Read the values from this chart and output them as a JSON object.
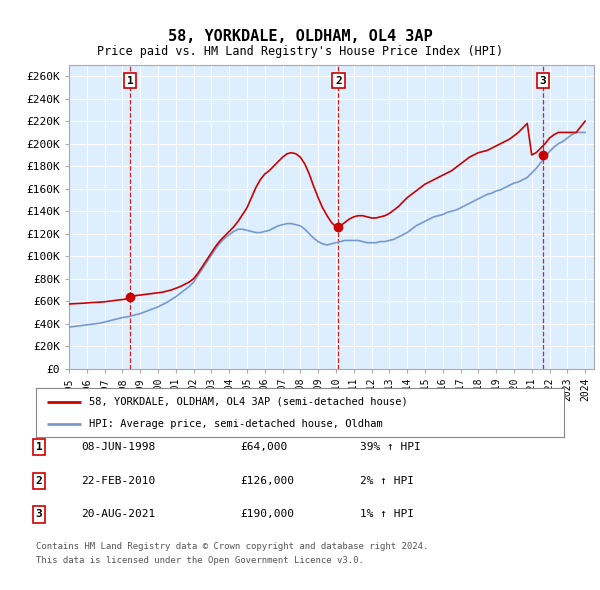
{
  "title": "58, YORKDALE, OLDHAM, OL4 3AP",
  "subtitle": "Price paid vs. HM Land Registry's House Price Index (HPI)",
  "ylabel_ticks": [
    "£0",
    "£20K",
    "£40K",
    "£60K",
    "£80K",
    "£100K",
    "£120K",
    "£140K",
    "£160K",
    "£180K",
    "£200K",
    "£220K",
    "£240K",
    "£260K"
  ],
  "ytick_values": [
    0,
    20000,
    40000,
    60000,
    80000,
    100000,
    120000,
    140000,
    160000,
    180000,
    200000,
    220000,
    240000,
    260000
  ],
  "ylim": [
    0,
    270000
  ],
  "xlim_start": 1995.0,
  "xlim_end": 2024.5,
  "sale_dates": [
    1998.44,
    2010.14,
    2021.64
  ],
  "sale_prices": [
    64000,
    126000,
    190000
  ],
  "sale_labels": [
    "1",
    "2",
    "3"
  ],
  "vline_color": "#cc0000",
  "sale_marker_color": "#cc0000",
  "hpi_line_color": "#7799cc",
  "price_line_color": "#cc0000",
  "background_color": "#ffffff",
  "plot_bg_color": "#ddeeff",
  "grid_color": "#ffffff",
  "legend_label_price": "58, YORKDALE, OLDHAM, OL4 3AP (semi-detached house)",
  "legend_label_hpi": "HPI: Average price, semi-detached house, Oldham",
  "table_entries": [
    {
      "label": "1",
      "date": "08-JUN-1998",
      "price": "£64,000",
      "hpi": "39% ↑ HPI"
    },
    {
      "label": "2",
      "date": "22-FEB-2010",
      "price": "£126,000",
      "hpi": "2% ↑ HPI"
    },
    {
      "label": "3",
      "date": "20-AUG-2021",
      "price": "£190,000",
      "hpi": "1% ↑ HPI"
    }
  ],
  "footnote1": "Contains HM Land Registry data © Crown copyright and database right 2024.",
  "footnote2": "This data is licensed under the Open Government Licence v3.0.",
  "hpi_data_x": [
    1995.0,
    1995.25,
    1995.5,
    1995.75,
    1996.0,
    1996.25,
    1996.5,
    1996.75,
    1997.0,
    1997.25,
    1997.5,
    1997.75,
    1998.0,
    1998.25,
    1998.5,
    1998.75,
    1999.0,
    1999.25,
    1999.5,
    1999.75,
    2000.0,
    2000.25,
    2000.5,
    2000.75,
    2001.0,
    2001.25,
    2001.5,
    2001.75,
    2002.0,
    2002.25,
    2002.5,
    2002.75,
    2003.0,
    2003.25,
    2003.5,
    2003.75,
    2004.0,
    2004.25,
    2004.5,
    2004.75,
    2005.0,
    2005.25,
    2005.5,
    2005.75,
    2006.0,
    2006.25,
    2006.5,
    2006.75,
    2007.0,
    2007.25,
    2007.5,
    2007.75,
    2008.0,
    2008.25,
    2008.5,
    2008.75,
    2009.0,
    2009.25,
    2009.5,
    2009.75,
    2010.0,
    2010.25,
    2010.5,
    2010.75,
    2011.0,
    2011.25,
    2011.5,
    2011.75,
    2012.0,
    2012.25,
    2012.5,
    2012.75,
    2013.0,
    2013.25,
    2013.5,
    2013.75,
    2014.0,
    2014.25,
    2014.5,
    2014.75,
    2015.0,
    2015.25,
    2015.5,
    2015.75,
    2016.0,
    2016.25,
    2016.5,
    2016.75,
    2017.0,
    2017.25,
    2017.5,
    2017.75,
    2018.0,
    2018.25,
    2018.5,
    2018.75,
    2019.0,
    2019.25,
    2019.5,
    2019.75,
    2020.0,
    2020.25,
    2020.5,
    2020.75,
    2021.0,
    2021.25,
    2021.5,
    2021.75,
    2022.0,
    2022.25,
    2022.5,
    2022.75,
    2023.0,
    2023.25,
    2023.5,
    2023.75,
    2024.0
  ],
  "hpi_data_y": [
    37000,
    37500,
    38000,
    38500,
    39000,
    39500,
    40000,
    40500,
    41500,
    42500,
    43500,
    44500,
    45500,
    46000,
    47000,
    48000,
    49000,
    50500,
    52000,
    53500,
    55000,
    57000,
    59000,
    61500,
    64000,
    67000,
    70000,
    73000,
    77000,
    83000,
    89000,
    95000,
    101000,
    107000,
    112000,
    116000,
    119000,
    122000,
    124000,
    124000,
    123000,
    122000,
    121000,
    121000,
    122000,
    123000,
    125000,
    127000,
    128000,
    129000,
    129000,
    128000,
    127000,
    124000,
    120000,
    116000,
    113000,
    111000,
    110000,
    111000,
    112000,
    113000,
    114000,
    114000,
    114000,
    114000,
    113000,
    112000,
    112000,
    112000,
    113000,
    113000,
    114000,
    115000,
    117000,
    119000,
    121000,
    124000,
    127000,
    129000,
    131000,
    133000,
    135000,
    136000,
    137000,
    139000,
    140000,
    141000,
    143000,
    145000,
    147000,
    149000,
    151000,
    153000,
    155000,
    156000,
    158000,
    159000,
    161000,
    163000,
    165000,
    166000,
    168000,
    170000,
    174000,
    178000,
    183000,
    188000,
    193000,
    197000,
    200000,
    202000,
    205000,
    208000,
    210000,
    210000,
    210000
  ],
  "price_data_x": [
    1995.0,
    1995.25,
    1995.5,
    1995.75,
    1996.0,
    1996.25,
    1996.5,
    1996.75,
    1997.0,
    1997.25,
    1997.5,
    1997.75,
    1998.0,
    1998.25,
    1998.5,
    1998.75,
    1999.0,
    1999.25,
    1999.5,
    1999.75,
    2000.0,
    2000.25,
    2000.5,
    2000.75,
    2001.0,
    2001.25,
    2001.5,
    2001.75,
    2002.0,
    2002.25,
    2002.5,
    2002.75,
    2003.0,
    2003.25,
    2003.5,
    2003.75,
    2004.0,
    2004.25,
    2004.5,
    2004.75,
    2005.0,
    2005.25,
    2005.5,
    2005.75,
    2006.0,
    2006.25,
    2006.5,
    2006.75,
    2007.0,
    2007.25,
    2007.5,
    2007.75,
    2008.0,
    2008.25,
    2008.5,
    2008.75,
    2009.0,
    2009.25,
    2009.5,
    2009.75,
    2010.0,
    2010.25,
    2010.5,
    2010.75,
    2011.0,
    2011.25,
    2011.5,
    2011.75,
    2012.0,
    2012.25,
    2012.5,
    2012.75,
    2013.0,
    2013.25,
    2013.5,
    2013.75,
    2014.0,
    2014.25,
    2014.5,
    2014.75,
    2015.0,
    2015.25,
    2015.5,
    2015.75,
    2016.0,
    2016.25,
    2016.5,
    2016.75,
    2017.0,
    2017.25,
    2017.5,
    2017.75,
    2018.0,
    2018.25,
    2018.5,
    2018.75,
    2019.0,
    2019.25,
    2019.5,
    2019.75,
    2020.0,
    2020.25,
    2020.5,
    2020.75,
    2021.0,
    2021.25,
    2021.5,
    2021.75,
    2022.0,
    2022.25,
    2022.5,
    2022.75,
    2023.0,
    2023.25,
    2023.5,
    2023.75,
    2024.0
  ],
  "price_data_y": [
    57500,
    57800,
    58000,
    58200,
    58500,
    58800,
    59000,
    59200,
    59500,
    60000,
    60500,
    61000,
    61500,
    62000,
    64000,
    65000,
    65500,
    66000,
    66500,
    67000,
    67500,
    68000,
    69000,
    70000,
    71500,
    73000,
    75000,
    77000,
    80000,
    85000,
    91000,
    97000,
    103000,
    109000,
    114000,
    118000,
    122000,
    126000,
    131000,
    137000,
    143000,
    152000,
    161000,
    168000,
    173000,
    176000,
    180000,
    184000,
    188000,
    191000,
    192000,
    191000,
    188000,
    182000,
    173000,
    162000,
    152000,
    143000,
    136000,
    130000,
    126000,
    127000,
    130000,
    133000,
    135000,
    136000,
    136000,
    135000,
    134000,
    134000,
    135000,
    136000,
    138000,
    141000,
    144000,
    148000,
    152000,
    155000,
    158000,
    161000,
    164000,
    166000,
    168000,
    170000,
    172000,
    174000,
    176000,
    179000,
    182000,
    185000,
    188000,
    190000,
    192000,
    193000,
    194000,
    196000,
    198000,
    200000,
    202000,
    204000,
    207000,
    210000,
    214000,
    218000,
    190000,
    192000,
    196000,
    200000,
    205000,
    208000,
    210000,
    210000,
    210000,
    210000,
    210000,
    215000,
    220000
  ],
  "xtick_years": [
    1995,
    1996,
    1997,
    1998,
    1999,
    2000,
    2001,
    2002,
    2003,
    2004,
    2005,
    2006,
    2007,
    2008,
    2009,
    2010,
    2011,
    2012,
    2013,
    2014,
    2015,
    2016,
    2017,
    2018,
    2019,
    2020,
    2021,
    2022,
    2023,
    2024
  ]
}
